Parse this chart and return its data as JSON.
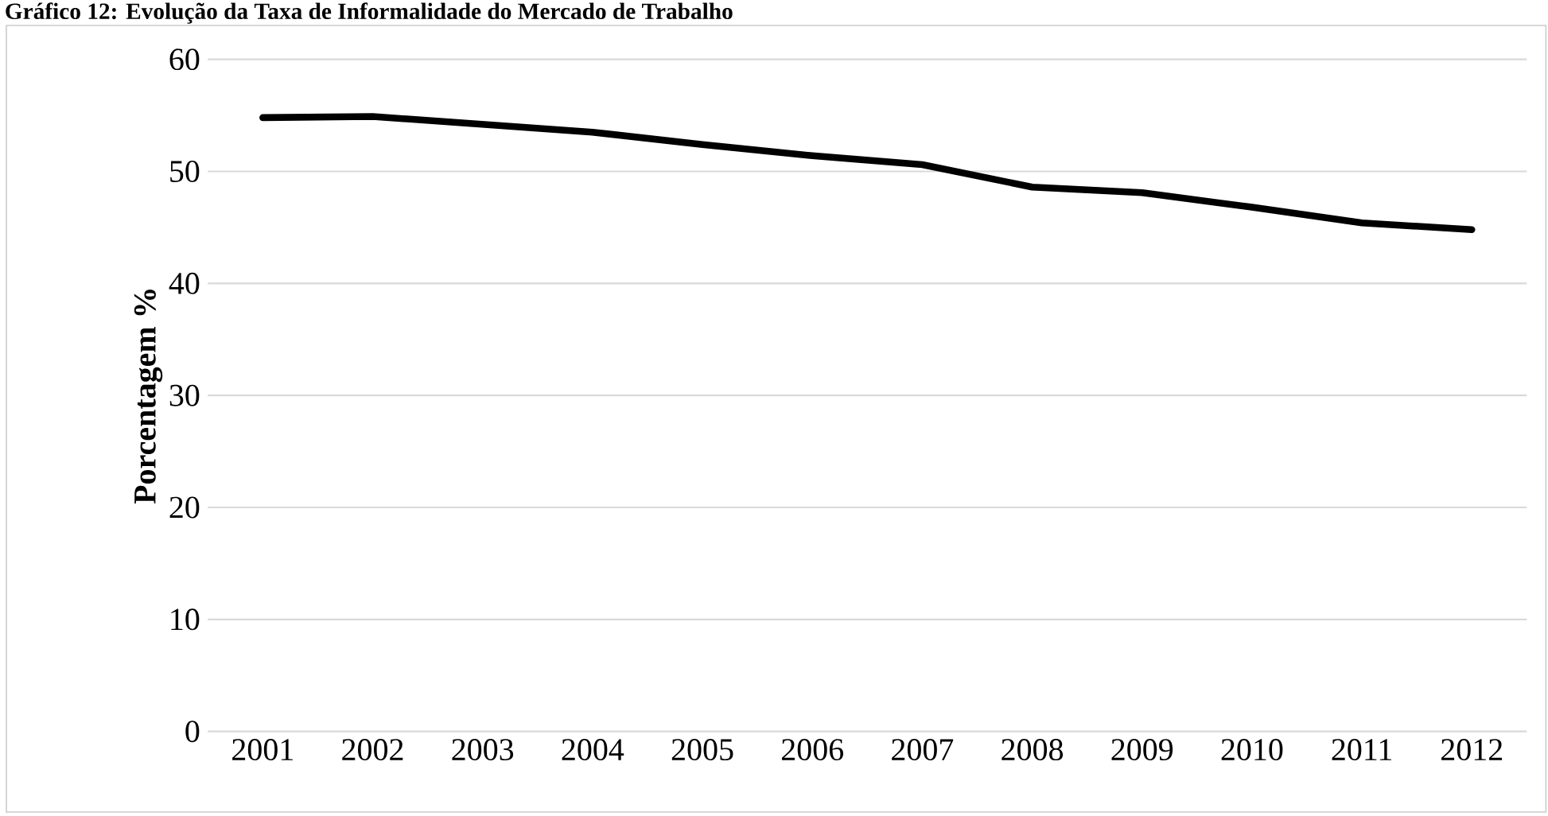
{
  "chart_data": {
    "type": "line",
    "title": "Gráfico 12: Evolução da Taxa de Informalidade do Mercado de Trabalho",
    "ylabel": "Porcentagem %",
    "categories": [
      "2001",
      "2002",
      "2003",
      "2004",
      "2005",
      "2006",
      "2007",
      "2008",
      "2009",
      "2010",
      "2011",
      "2012"
    ],
    "series": [
      {
        "color": "#000000",
        "values": [
          54.8,
          54.9,
          54.2,
          53.5,
          52.4,
          51.4,
          50.6,
          48.6,
          48.1,
          46.8,
          45.4,
          44.8
        ]
      }
    ],
    "ylim": [
      0,
      60
    ],
    "yticks": [
      0,
      10,
      20,
      30,
      40,
      50,
      60
    ],
    "grid": "y",
    "legend": false,
    "marker": "none",
    "line_style": "solid"
  }
}
